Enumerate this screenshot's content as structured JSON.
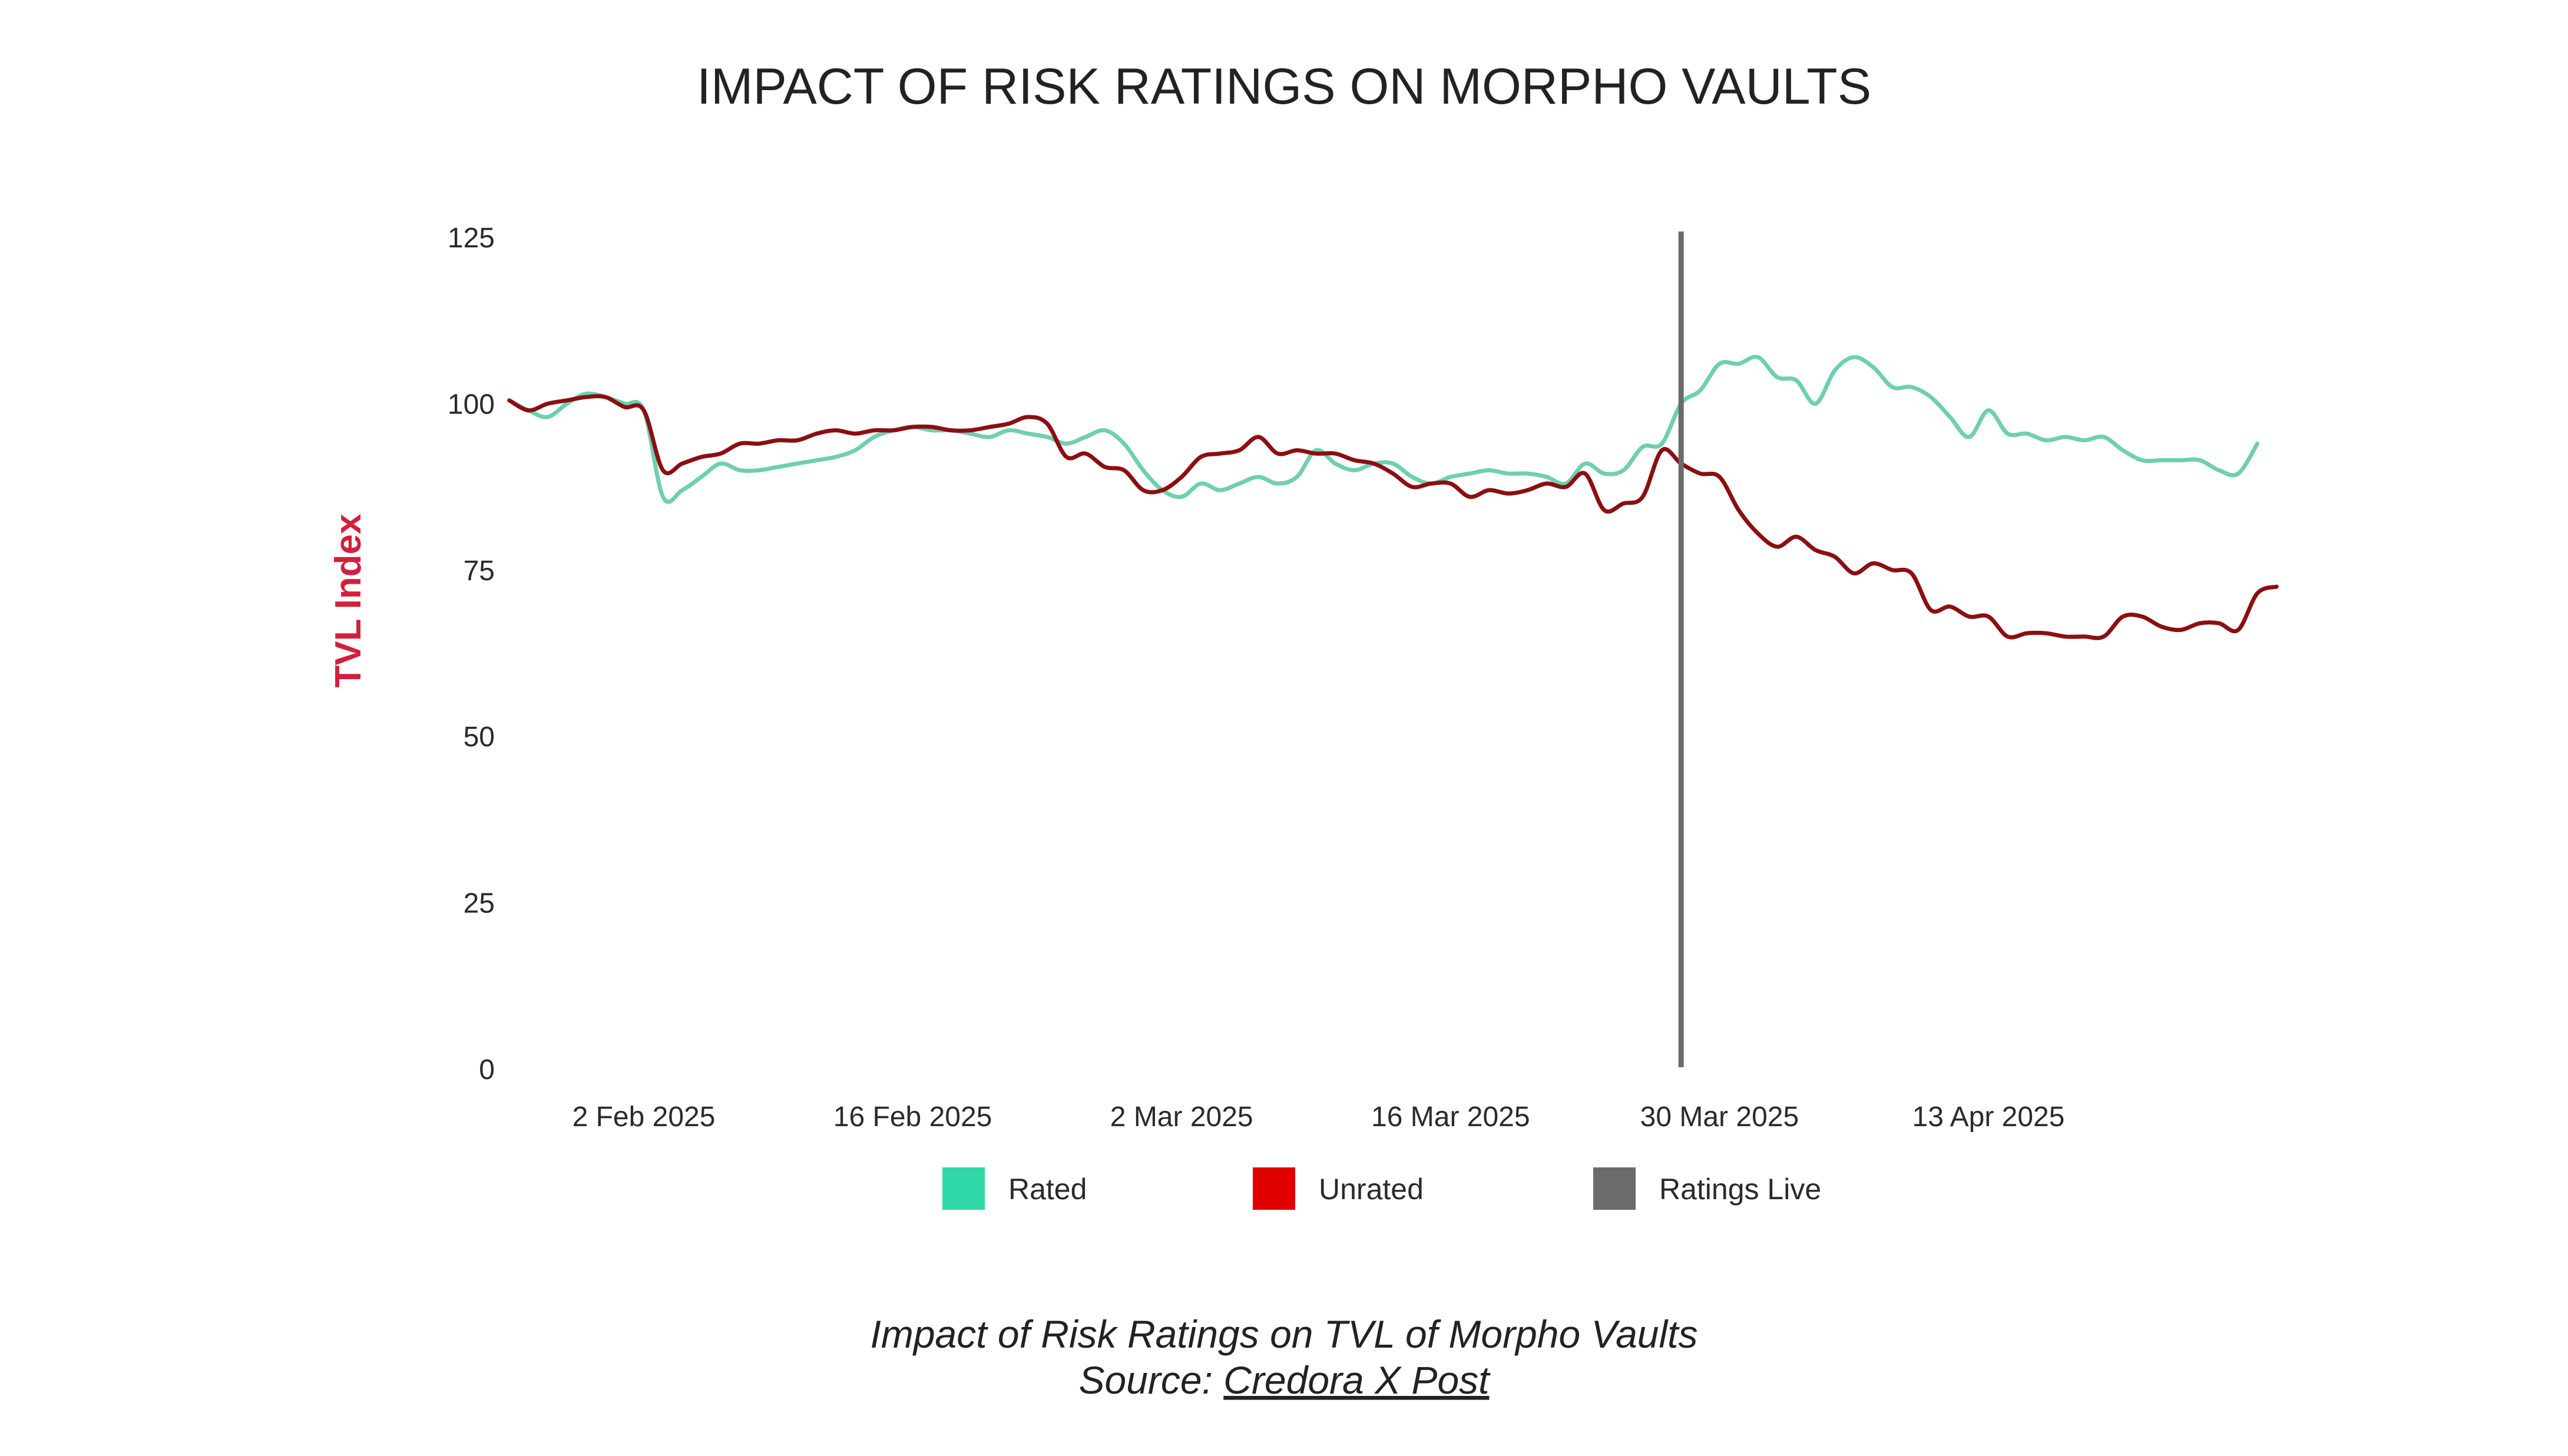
{
  "chart_data": {
    "type": "line",
    "title": "IMPACT OF RISK RATINGS ON MORPHO VAULTS",
    "ylabel": "TVL Index",
    "xlabel": "",
    "ylim": [
      0,
      125
    ],
    "yticks": [
      "0",
      "25",
      "50",
      "75",
      "100",
      "125"
    ],
    "xlim": [
      "2025-01-26",
      "2025-04-24"
    ],
    "xticks": [
      {
        "date": "2025-02-02",
        "label": "2 Feb 2025"
      },
      {
        "date": "2025-02-16",
        "label": "16 Feb 2025"
      },
      {
        "date": "2025-03-02",
        "label": "2 Mar 2025"
      },
      {
        "date": "2025-03-16",
        "label": "16 Mar 2025"
      },
      {
        "date": "2025-03-30",
        "label": "30 Mar 2025"
      },
      {
        "date": "2025-04-13",
        "label": "13 Apr 2025"
      }
    ],
    "grid": false,
    "legend_placement": "bottom",
    "marker": {
      "name": "Ratings Live",
      "date": "2025-03-28",
      "color": "#6b6b6b"
    },
    "series": [
      {
        "name": "Rated",
        "color": "#6fcfae",
        "legend_color": "#2fd8a6",
        "points": [
          [
            "2025-01-26",
            100.5
          ],
          [
            "2025-01-27",
            99
          ],
          [
            "2025-01-28",
            98
          ],
          [
            "2025-01-29",
            100
          ],
          [
            "2025-01-30",
            101.5
          ],
          [
            "2025-01-31",
            101
          ],
          [
            "2025-02-01",
            100
          ],
          [
            "2025-02-02",
            99
          ],
          [
            "2025-02-03",
            86
          ],
          [
            "2025-02-04",
            87
          ],
          [
            "2025-02-05",
            89
          ],
          [
            "2025-02-06",
            91
          ],
          [
            "2025-02-07",
            90
          ],
          [
            "2025-02-08",
            90
          ],
          [
            "2025-02-09",
            90.5
          ],
          [
            "2025-02-10",
            91
          ],
          [
            "2025-02-11",
            91.5
          ],
          [
            "2025-02-12",
            92
          ],
          [
            "2025-02-13",
            93
          ],
          [
            "2025-02-14",
            95
          ],
          [
            "2025-02-15",
            96
          ],
          [
            "2025-02-16",
            96.5
          ],
          [
            "2025-02-17",
            96
          ],
          [
            "2025-02-18",
            96
          ],
          [
            "2025-02-19",
            95.5
          ],
          [
            "2025-02-20",
            95
          ],
          [
            "2025-02-21",
            96
          ],
          [
            "2025-02-22",
            95.5
          ],
          [
            "2025-02-23",
            95
          ],
          [
            "2025-02-24",
            94
          ],
          [
            "2025-02-25",
            95
          ],
          [
            "2025-02-26",
            96
          ],
          [
            "2025-02-27",
            94
          ],
          [
            "2025-02-28",
            90
          ],
          [
            "2025-03-01",
            87
          ],
          [
            "2025-03-02",
            86
          ],
          [
            "2025-03-03",
            88
          ],
          [
            "2025-03-04",
            87
          ],
          [
            "2025-03-05",
            88
          ],
          [
            "2025-03-06",
            89
          ],
          [
            "2025-03-07",
            88
          ],
          [
            "2025-03-08",
            89
          ],
          [
            "2025-03-09",
            93
          ],
          [
            "2025-03-10",
            91
          ],
          [
            "2025-03-11",
            90
          ],
          [
            "2025-03-12",
            91
          ],
          [
            "2025-03-13",
            91
          ],
          [
            "2025-03-14",
            89
          ],
          [
            "2025-03-15",
            88
          ],
          [
            "2025-03-16",
            89
          ],
          [
            "2025-03-17",
            89.5
          ],
          [
            "2025-03-18",
            90
          ],
          [
            "2025-03-19",
            89.5
          ],
          [
            "2025-03-20",
            89.5
          ],
          [
            "2025-03-21",
            89
          ],
          [
            "2025-03-22",
            88
          ],
          [
            "2025-03-23",
            91
          ],
          [
            "2025-03-24",
            89.5
          ],
          [
            "2025-03-25",
            90
          ],
          [
            "2025-03-26",
            93.5
          ],
          [
            "2025-03-27",
            94
          ],
          [
            "2025-03-28",
            100
          ],
          [
            "2025-03-29",
            102
          ],
          [
            "2025-03-30",
            106
          ],
          [
            "2025-03-31",
            106
          ],
          [
            "2025-04-01",
            107
          ],
          [
            "2025-04-02",
            104
          ],
          [
            "2025-04-03",
            103.5
          ],
          [
            "2025-04-04",
            100
          ],
          [
            "2025-04-05",
            105
          ],
          [
            "2025-04-06",
            107
          ],
          [
            "2025-04-07",
            105.5
          ],
          [
            "2025-04-08",
            102.5
          ],
          [
            "2025-04-09",
            102.5
          ],
          [
            "2025-04-10",
            101
          ],
          [
            "2025-04-11",
            98
          ],
          [
            "2025-04-12",
            95
          ],
          [
            "2025-04-13",
            99
          ],
          [
            "2025-04-14",
            95.5
          ],
          [
            "2025-04-15",
            95.5
          ],
          [
            "2025-04-16",
            94.5
          ],
          [
            "2025-04-17",
            95
          ],
          [
            "2025-04-18",
            94.5
          ],
          [
            "2025-04-19",
            95
          ],
          [
            "2025-04-20",
            93
          ],
          [
            "2025-04-21",
            91.5
          ],
          [
            "2025-04-22",
            91.5
          ],
          [
            "2025-04-23",
            91.5
          ],
          [
            "2025-04-24",
            91.5
          ],
          [
            "2025-04-25",
            90
          ],
          [
            "2025-04-26",
            89.5
          ],
          [
            "2025-04-27",
            94
          ]
        ]
      },
      {
        "name": "Unrated",
        "color": "#8b0f12",
        "legend_color": "#e10000",
        "points": [
          [
            "2025-01-26",
            100.5
          ],
          [
            "2025-01-27",
            99
          ],
          [
            "2025-01-28",
            100
          ],
          [
            "2025-01-29",
            100.5
          ],
          [
            "2025-01-30",
            101
          ],
          [
            "2025-01-31",
            101
          ],
          [
            "2025-02-01",
            99.5
          ],
          [
            "2025-02-02",
            99
          ],
          [
            "2025-02-03",
            90
          ],
          [
            "2025-02-04",
            91
          ],
          [
            "2025-02-05",
            92
          ],
          [
            "2025-02-06",
            92.5
          ],
          [
            "2025-02-07",
            94
          ],
          [
            "2025-02-08",
            94
          ],
          [
            "2025-02-09",
            94.5
          ],
          [
            "2025-02-10",
            94.5
          ],
          [
            "2025-02-11",
            95.5
          ],
          [
            "2025-02-12",
            96
          ],
          [
            "2025-02-13",
            95.5
          ],
          [
            "2025-02-14",
            96
          ],
          [
            "2025-02-15",
            96
          ],
          [
            "2025-02-16",
            96.5
          ],
          [
            "2025-02-17",
            96.5
          ],
          [
            "2025-02-18",
            96
          ],
          [
            "2025-02-19",
            96
          ],
          [
            "2025-02-20",
            96.5
          ],
          [
            "2025-02-21",
            97
          ],
          [
            "2025-02-22",
            98
          ],
          [
            "2025-02-23",
            97
          ],
          [
            "2025-02-24",
            92
          ],
          [
            "2025-02-25",
            92.5
          ],
          [
            "2025-02-26",
            90.5
          ],
          [
            "2025-02-27",
            90
          ],
          [
            "2025-02-28",
            87
          ],
          [
            "2025-03-01",
            87
          ],
          [
            "2025-03-02",
            89
          ],
          [
            "2025-03-03",
            92
          ],
          [
            "2025-03-04",
            92.5
          ],
          [
            "2025-03-05",
            93
          ],
          [
            "2025-03-06",
            95
          ],
          [
            "2025-03-07",
            92.5
          ],
          [
            "2025-03-08",
            93
          ],
          [
            "2025-03-09",
            92.5
          ],
          [
            "2025-03-10",
            92.5
          ],
          [
            "2025-03-11",
            91.5
          ],
          [
            "2025-03-12",
            91
          ],
          [
            "2025-03-13",
            89.5
          ],
          [
            "2025-03-14",
            87.5
          ],
          [
            "2025-03-15",
            88
          ],
          [
            "2025-03-16",
            88
          ],
          [
            "2025-03-17",
            86
          ],
          [
            "2025-03-18",
            87
          ],
          [
            "2025-03-19",
            86.5
          ],
          [
            "2025-03-20",
            87
          ],
          [
            "2025-03-21",
            88
          ],
          [
            "2025-03-22",
            87.5
          ],
          [
            "2025-03-23",
            89.5
          ],
          [
            "2025-03-24",
            84
          ],
          [
            "2025-03-25",
            85
          ],
          [
            "2025-03-26",
            86
          ],
          [
            "2025-03-27",
            93
          ],
          [
            "2025-03-28",
            91
          ],
          [
            "2025-03-29",
            89.5
          ],
          [
            "2025-03-30",
            89
          ],
          [
            "2025-03-31",
            84
          ],
          [
            "2025-04-01",
            80.5
          ],
          [
            "2025-04-02",
            78.5
          ],
          [
            "2025-04-03",
            80
          ],
          [
            "2025-04-04",
            78
          ],
          [
            "2025-04-05",
            77
          ],
          [
            "2025-04-06",
            74.5
          ],
          [
            "2025-04-07",
            76
          ],
          [
            "2025-04-08",
            75
          ],
          [
            "2025-04-09",
            74.5
          ],
          [
            "2025-04-10",
            69
          ],
          [
            "2025-04-11",
            69.5
          ],
          [
            "2025-04-12",
            68
          ],
          [
            "2025-04-13",
            68
          ],
          [
            "2025-04-14",
            65
          ],
          [
            "2025-04-15",
            65.5
          ],
          [
            "2025-04-16",
            65.5
          ],
          [
            "2025-04-17",
            65
          ],
          [
            "2025-04-18",
            65
          ],
          [
            "2025-04-19",
            65
          ],
          [
            "2025-04-20",
            68
          ],
          [
            "2025-04-21",
            68
          ],
          [
            "2025-04-22",
            66.5
          ],
          [
            "2025-04-23",
            66
          ],
          [
            "2025-04-24",
            67
          ],
          [
            "2025-04-25",
            67
          ],
          [
            "2025-04-26",
            66
          ],
          [
            "2025-04-27",
            71.5
          ],
          [
            "2025-04-28",
            72.5
          ]
        ]
      }
    ]
  },
  "caption": {
    "line1": "Impact of Risk Ratings on TVL of Morpho Vaults",
    "line2_prefix": "Source: ",
    "line2_link": "Credora X Post"
  },
  "colors": {
    "ylabel": "#d41f3c"
  }
}
